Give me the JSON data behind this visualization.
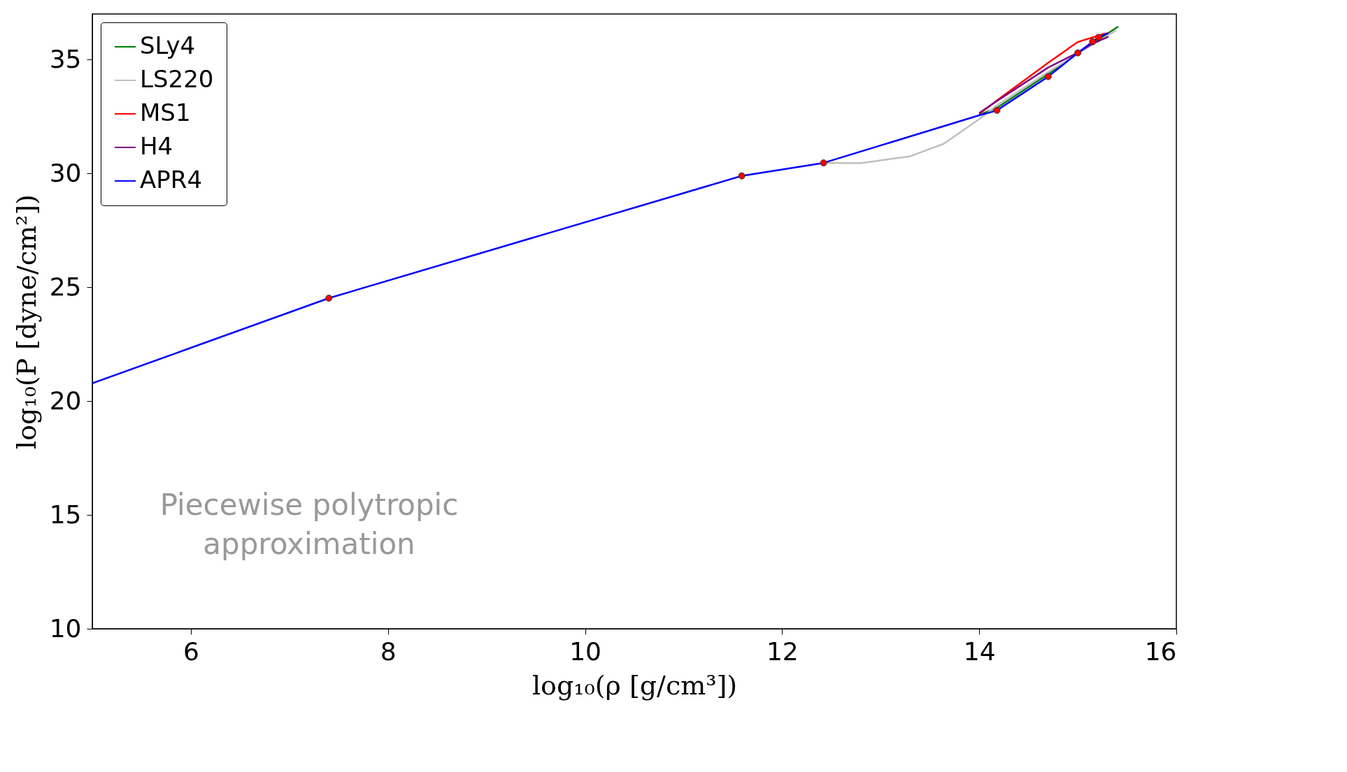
{
  "chart_data": {
    "type": "line",
    "xlabel": "log₁₀(ρ  [g/cm³])",
    "ylabel": "log₁₀(P  [dyne/cm²])",
    "xlim": [
      5,
      16
    ],
    "ylim": [
      10,
      37
    ],
    "xticks": [
      6,
      8,
      10,
      12,
      14,
      16
    ],
    "yticks": [
      10,
      15,
      20,
      25,
      30,
      35
    ],
    "legend": "top left",
    "line_style": "solid",
    "annotations": [
      "Piecewise polytropic\napproximation"
    ],
    "series": [
      {
        "name": "SLy4",
        "color": "#007f00",
        "x": [
          14.0,
          14.18,
          14.7,
          15.0,
          15.41
        ],
        "values": [
          32.57,
          32.88,
          34.36,
          35.28,
          36.45
        ]
      },
      {
        "name": "LS220",
        "color": "#bfbfbf",
        "x": [
          12.42,
          12.8,
          13.3,
          13.64,
          14.0,
          14.18,
          14.7,
          15.0,
          15.39
        ],
        "values": [
          30.46,
          30.45,
          30.75,
          31.3,
          32.38,
          32.99,
          34.45,
          35.26,
          36.28
        ]
      },
      {
        "name": "MS1",
        "color": "#ff0000",
        "x": [
          14.0,
          14.18,
          14.7,
          15.0,
          15.18,
          15.25,
          15.31
        ],
        "values": [
          32.61,
          33.2,
          34.86,
          35.77,
          36.01,
          36.11,
          36.16
        ]
      },
      {
        "name": "H4",
        "color": "#800080",
        "x": [
          14.0,
          14.18,
          14.7,
          15.0,
          15.15,
          15.31
        ],
        "values": [
          32.65,
          33.18,
          34.65,
          35.3,
          35.7,
          36.0
        ]
      },
      {
        "name": "APR4",
        "color": "#0000ff",
        "x": [
          5,
          7.4,
          11.59,
          12.42,
          14.0,
          14.13,
          14.18,
          14.7,
          15.0,
          15.15,
          15.21,
          15.31
        ],
        "values": [
          20.78,
          24.52,
          29.89,
          30.46,
          32.55,
          32.7,
          32.77,
          34.25,
          35.29,
          35.78,
          35.97,
          36.16
        ]
      },
      {
        "type": "scatter",
        "marker": "circle",
        "color": "#ff0000",
        "x": [
          7.4,
          11.59,
          12.42,
          14.18,
          14.7,
          15.0,
          15.15,
          15.21
        ],
        "values": [
          24.52,
          29.89,
          30.46,
          32.77,
          34.25,
          35.29,
          35.78,
          35.97
        ]
      }
    ]
  }
}
